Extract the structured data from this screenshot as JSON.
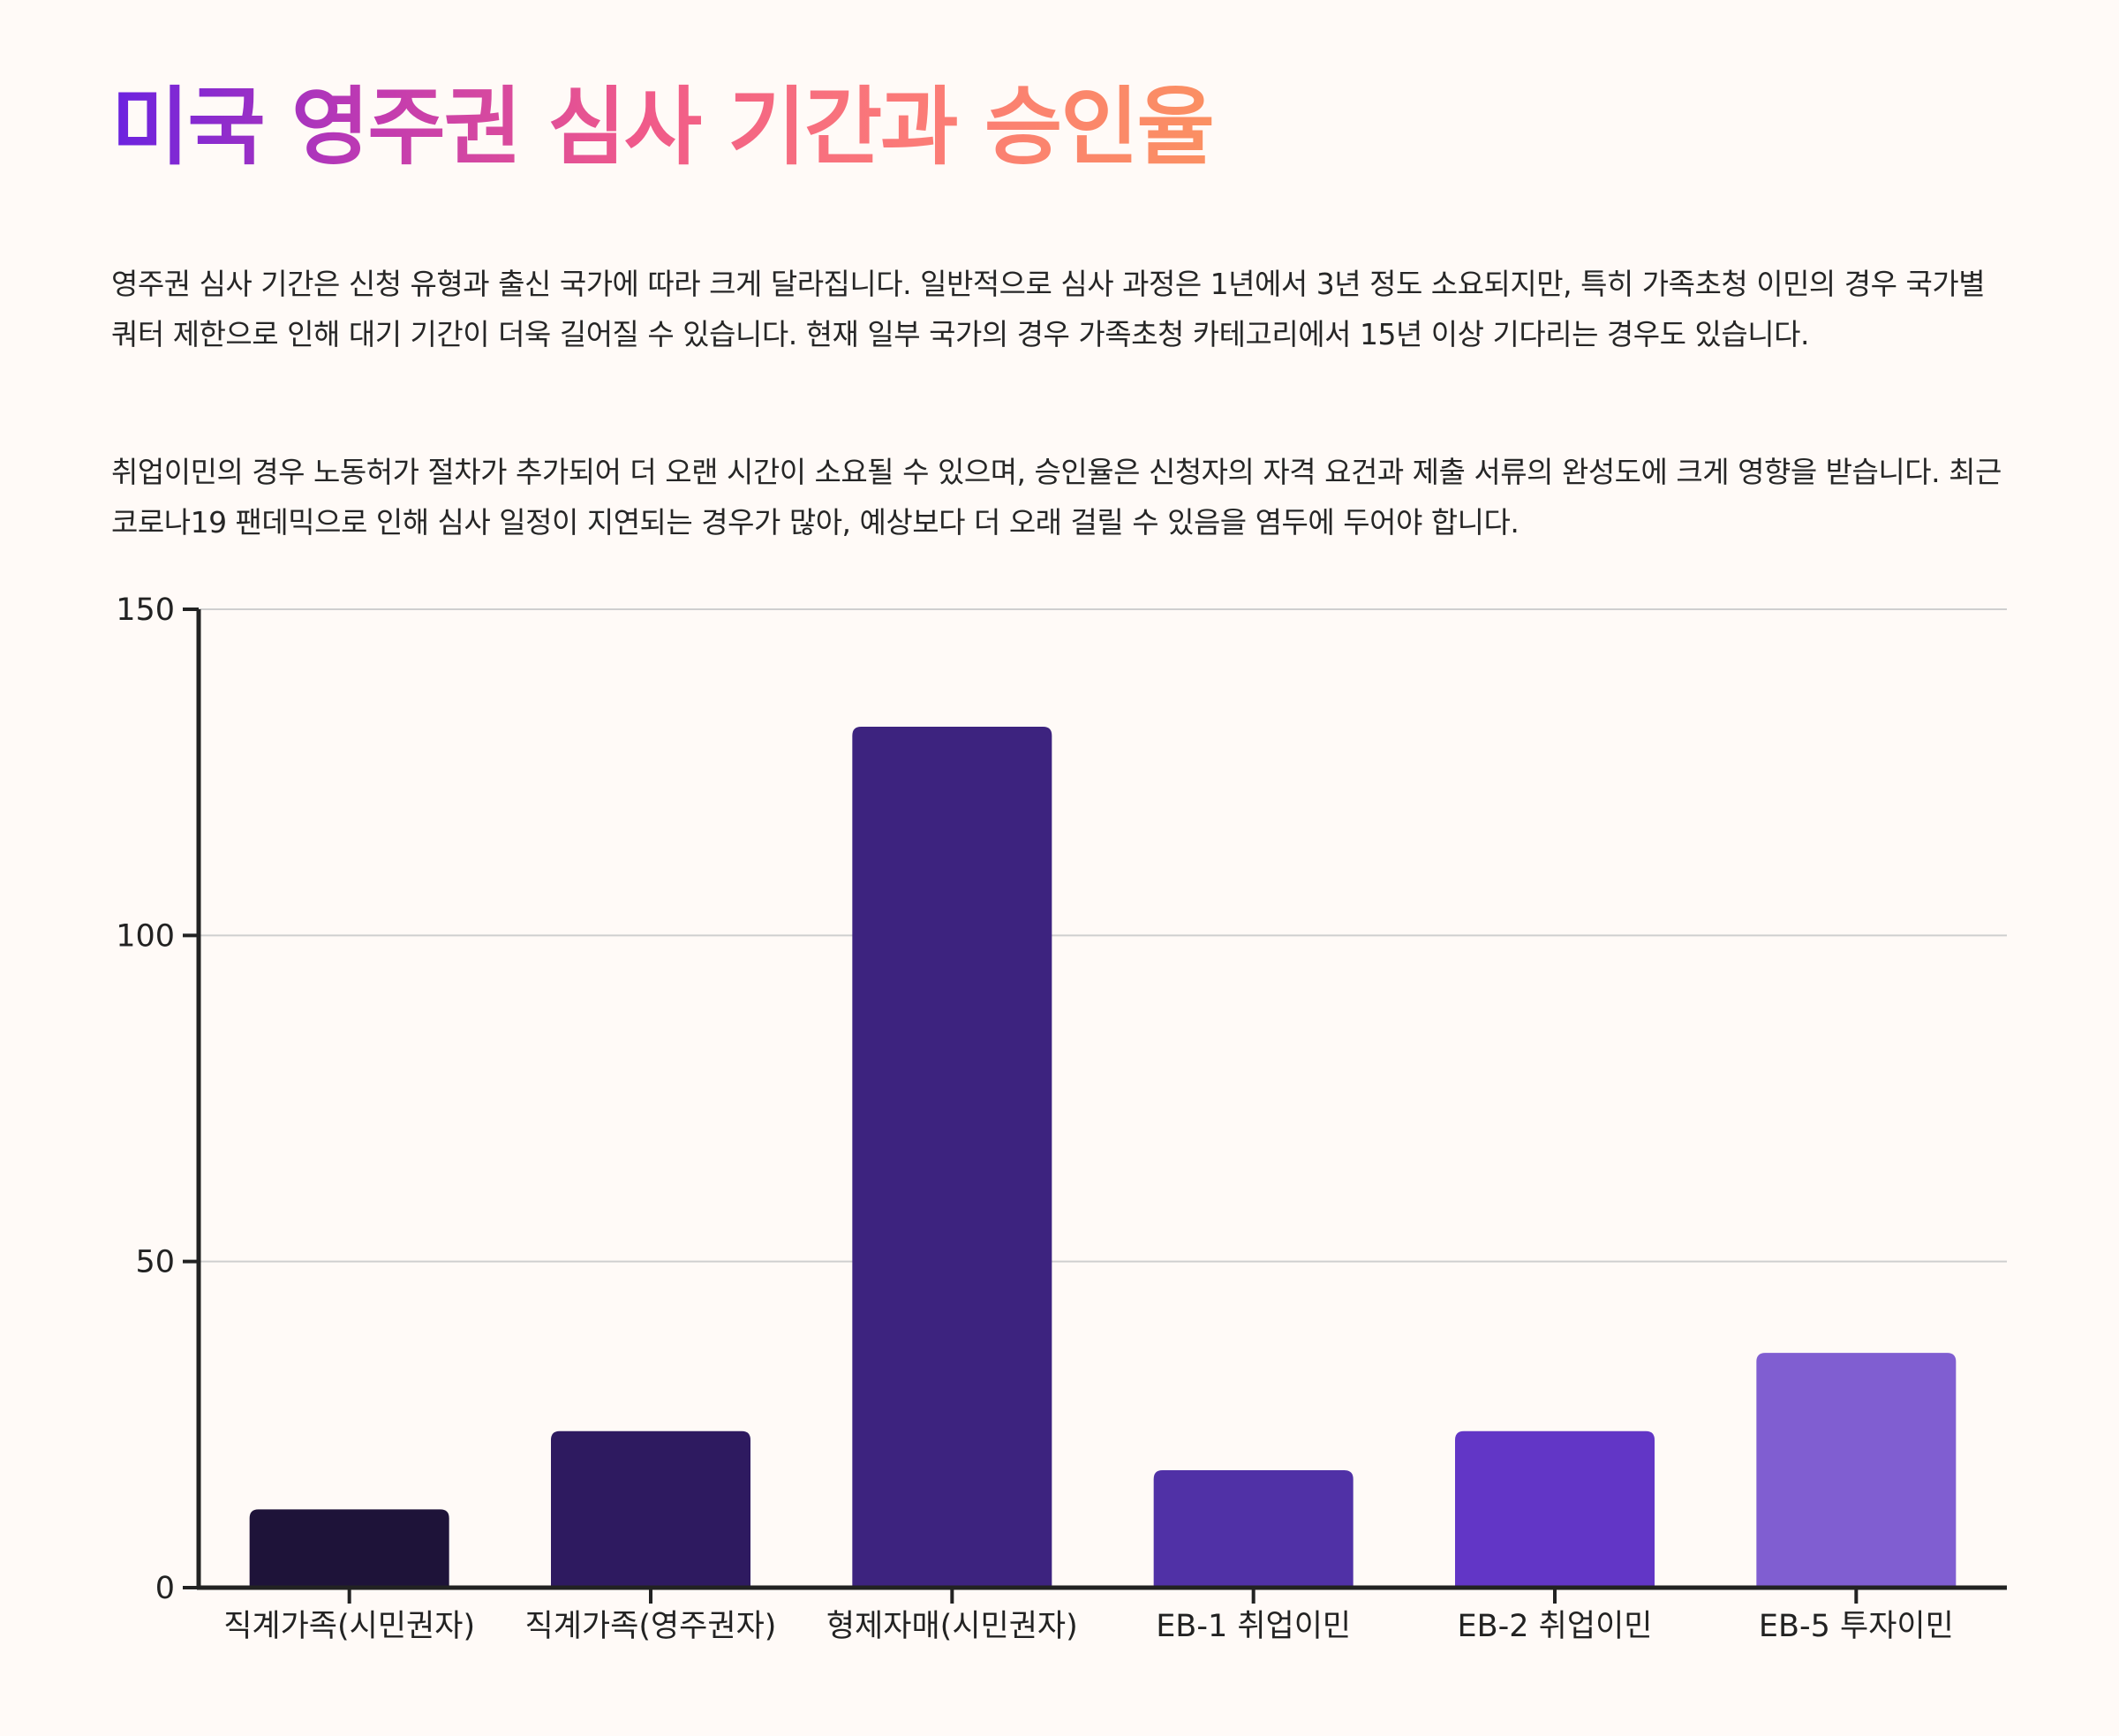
{
  "header": {
    "title": "미국 영주권 심사 기간과 승인율"
  },
  "body": {
    "paragraph1": "영주권 심사 기간은 신청 유형과 출신 국가에 따라 크게 달라집니다. 일반적으로 심사 과정은 1년에서 3년 정도 소요되지만, 특히 가족초청 이민의 경우 국가별 쿼터 제한으로 인해 대기 기간이 더욱 길어질 수 있습니다. 현재 일부 국가의 경우 가족초청 카테고리에서 15년 이상 기다리는 경우도 있습니다.",
    "paragraph2": "취업이민의 경우 노동허가 절차가 추가되어 더 오랜 시간이 소요될 수 있으며, 승인율은 신청자의 자격 요건과 제출 서류의 완성도에 크게 영향을 받습니다. 최근 코로나19 팬데믹으로 인해 심사 일정이 지연되는 경우가 많아, 예상보다 더 오래 걸릴 수 있음을 염두에 두어야 합니다."
  },
  "chart_data": {
    "type": "bar",
    "categories": [
      "직계가족(시민권자)",
      "직계가족(영주권자)",
      "형제자매(시민권자)",
      "EB-1 취업이민",
      "EB-2 취업이민",
      "EB-5 투자이민"
    ],
    "values": [
      12,
      24,
      132,
      18,
      24,
      36
    ],
    "ylim": [
      0,
      150
    ],
    "yticks": [
      0,
      50,
      100,
      150
    ],
    "grid": true,
    "title": "",
    "xlabel": "",
    "ylabel": "",
    "colors": [
      "#1e1339",
      "#2e1a60",
      "#3d237f",
      "#5031a6",
      "#6236c6",
      "#805ed1"
    ]
  }
}
